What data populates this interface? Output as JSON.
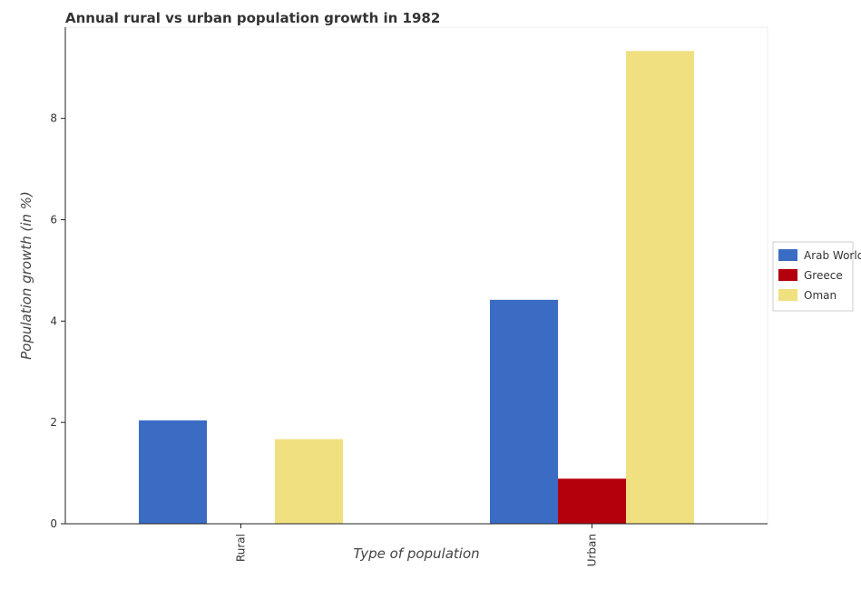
{
  "chart_data": {
    "type": "bar",
    "title": "Annual rural vs urban population growth in 1982",
    "xlabel": "Type of population",
    "ylabel": "Population growth (in %)",
    "categories": [
      "Rural",
      "Urban"
    ],
    "series": [
      {
        "name": "Arab World",
        "color": "#3a6cc4",
        "values": [
          2.04,
          4.42
        ]
      },
      {
        "name": "Greece",
        "color": "#b4000c",
        "values": [
          0,
          0.89
        ]
      },
      {
        "name": "Oman",
        "color": "#f0e080",
        "values": [
          1.67,
          9.33
        ]
      }
    ],
    "ylim": [
      0,
      9.8
    ],
    "yticks": [
      0,
      2,
      4,
      6,
      8
    ],
    "grid": false,
    "legend_position": "right"
  }
}
